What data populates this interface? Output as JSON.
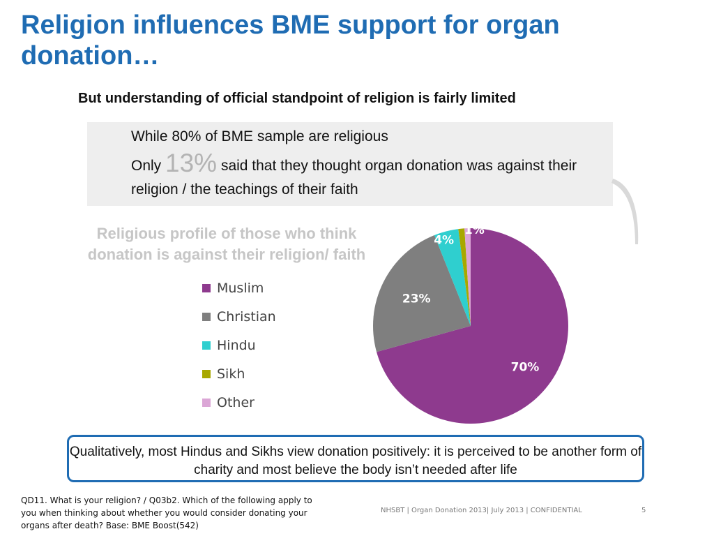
{
  "slide": {
    "title": "Religion influences BME support for organ donation…",
    "subtitle": "But understanding of official standpoint of religion is fairly limited",
    "callout": {
      "line1": "While 80% of BME sample are religious",
      "line2_prefix": "Only",
      "line2_highlight": "13%",
      "line2_suffix": "said that they thought organ donation was against their religion / the teachings of their faith"
    },
    "quote": "Qualitatively, most Hindus and Sikhs view donation positively: it is perceived to be another form of charity and most believe the body isn’t needed after life",
    "footnote": "QD11. What is your religion? / Q03b2. Which of the following apply to you when thinking about whether you would consider donating your organs after death? Base: BME  Boost(542)",
    "footer": "NHSBT |  Organ Donation  2013|  July 2013 |  CONFIDENTIAL",
    "page_number": "5"
  },
  "chart_data": {
    "type": "pie",
    "title": "Religious profile of those who think donation is against their religion/ faith",
    "categories": [
      "Muslim",
      "Christian",
      "Hindu",
      "Sikh",
      "Other"
    ],
    "values": [
      70,
      23,
      4,
      1,
      1
    ],
    "labels": [
      "70%",
      "23%",
      "4%",
      "1%",
      "1%"
    ],
    "colors": [
      "#8e3a8e",
      "#7f7f7f",
      "#2fcfcf",
      "#a8a800",
      "#dba6d6"
    ],
    "legend_position": "left"
  }
}
